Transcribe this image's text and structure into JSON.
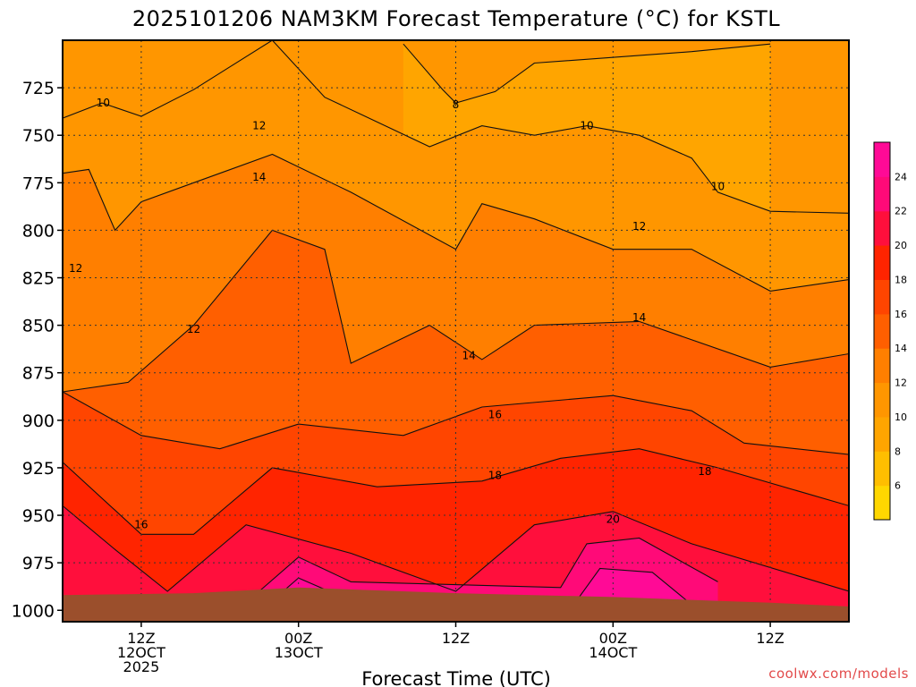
{
  "chart_data": {
    "type": "heatmap",
    "title": "2025101206 NAM3KM Forecast Temperature (°C) for KSTL",
    "xlabel": "Forecast Time (UTC)",
    "ylabel": "",
    "y_ticks": [
      725,
      750,
      775,
      800,
      825,
      850,
      875,
      900,
      925,
      950,
      975,
      1000
    ],
    "y_range_hPa": [
      700,
      1006
    ],
    "x_ticks": [
      {
        "hour": 6,
        "lines": [
          "12Z",
          "12OCT",
          "2025"
        ]
      },
      {
        "hour": 18,
        "lines": [
          "00Z",
          "13OCT"
        ]
      },
      {
        "hour": 30,
        "lines": [
          "12Z"
        ]
      },
      {
        "hour": 42,
        "lines": [
          "00Z",
          "14OCT"
        ]
      },
      {
        "hour": 54,
        "lines": [
          "12Z"
        ]
      }
    ],
    "x_range_hours": [
      0,
      60
    ],
    "grid": true,
    "colorbar": {
      "placement": "right",
      "tick_labels": [
        6,
        8,
        10,
        12,
        14,
        16,
        18,
        20,
        22,
        24
      ],
      "levels": [
        4,
        6,
        8,
        10,
        12,
        14,
        16,
        18,
        20,
        22,
        24,
        26
      ],
      "colors": [
        "#ffd700",
        "#ffbe00",
        "#ffa500",
        "#ff9600",
        "#ff7f00",
        "#ff5f00",
        "#ff4500",
        "#ff2400",
        "#ff0f3c",
        "#ff0a78",
        "#ff0a96"
      ]
    },
    "ground_color": "#9b4f2c",
    "contour_labels": [
      {
        "text": "10",
        "hour": 3.1,
        "p": 733
      },
      {
        "text": "12",
        "hour": 1.0,
        "p": 820
      },
      {
        "text": "12",
        "hour": 15.0,
        "p": 745
      },
      {
        "text": "14",
        "hour": 15.0,
        "p": 772
      },
      {
        "text": "12",
        "hour": 10.0,
        "p": 852
      },
      {
        "text": "16",
        "hour": 6.0,
        "p": 955
      },
      {
        "text": "8",
        "hour": 30.0,
        "p": 734
      },
      {
        "text": "14",
        "hour": 31.0,
        "p": 866
      },
      {
        "text": "16",
        "hour": 33.0,
        "p": 897
      },
      {
        "text": "18",
        "hour": 33.0,
        "p": 929
      },
      {
        "text": "10",
        "hour": 40.0,
        "p": 745
      },
      {
        "text": "10",
        "hour": 50.0,
        "p": 777
      },
      {
        "text": "12",
        "hour": 44.0,
        "p": 798
      },
      {
        "text": "14",
        "hour": 44.0,
        "p": 846
      },
      {
        "text": "20",
        "hour": 42.0,
        "p": 952
      },
      {
        "text": "18",
        "hour": 49.0,
        "p": 927
      }
    ],
    "series": [
      {
        "level": 8,
        "sample": [
          [
            26,
            702
          ],
          [
            29,
            726
          ],
          [
            30,
            733
          ],
          [
            33,
            727
          ],
          [
            36,
            712
          ],
          [
            48,
            706
          ],
          [
            54,
            702
          ]
        ]
      },
      {
        "level": 10,
        "sample": [
          [
            0,
            741
          ],
          [
            3,
            733
          ],
          [
            6,
            740
          ],
          [
            10,
            726
          ],
          [
            16,
            700
          ],
          [
            20,
            730
          ],
          [
            28,
            756
          ],
          [
            32,
            745
          ],
          [
            36,
            750
          ],
          [
            40,
            745
          ],
          [
            44,
            750
          ],
          [
            48,
            762
          ],
          [
            50,
            780
          ],
          [
            54,
            790
          ],
          [
            60,
            791
          ]
        ]
      },
      {
        "level": 12,
        "sample": [
          [
            0,
            770
          ],
          [
            2,
            768
          ],
          [
            4,
            800
          ],
          [
            6,
            785
          ],
          [
            10,
            775
          ],
          [
            16,
            760
          ],
          [
            22,
            780
          ],
          [
            30,
            810
          ],
          [
            32,
            786
          ],
          [
            36,
            794
          ],
          [
            42,
            810
          ],
          [
            48,
            810
          ],
          [
            54,
            832
          ],
          [
            60,
            826
          ]
        ]
      },
      {
        "level": 14,
        "sample": [
          [
            0,
            885
          ],
          [
            5,
            880
          ],
          [
            10,
            850
          ],
          [
            16,
            800
          ],
          [
            20,
            810
          ],
          [
            22,
            870
          ],
          [
            28,
            850
          ],
          [
            32,
            868
          ],
          [
            36,
            850
          ],
          [
            44,
            848
          ],
          [
            54,
            872
          ],
          [
            60,
            865
          ]
        ]
      },
      {
        "level": 16,
        "sample": [
          [
            0,
            885
          ],
          [
            6,
            908
          ],
          [
            12,
            915
          ],
          [
            18,
            902
          ],
          [
            26,
            908
          ],
          [
            32,
            893
          ],
          [
            42,
            887
          ],
          [
            48,
            895
          ],
          [
            52,
            912
          ],
          [
            60,
            918
          ]
        ]
      },
      {
        "level": 18,
        "sample": [
          [
            0,
            922
          ],
          [
            6,
            960
          ],
          [
            10,
            960
          ],
          [
            16,
            925
          ],
          [
            24,
            935
          ],
          [
            32,
            932
          ],
          [
            38,
            920
          ],
          [
            44,
            915
          ],
          [
            50,
            925
          ],
          [
            60,
            945
          ]
        ]
      },
      {
        "level": 20,
        "sample": [
          [
            0,
            945
          ],
          [
            4,
            968
          ],
          [
            8,
            990
          ],
          [
            14,
            955
          ],
          [
            22,
            970
          ],
          [
            30,
            990
          ],
          [
            36,
            955
          ],
          [
            42,
            948
          ],
          [
            48,
            965
          ],
          [
            60,
            990
          ]
        ]
      },
      {
        "level": 22,
        "sample": [
          [
            15,
            990
          ],
          [
            18,
            972
          ],
          [
            22,
            985
          ],
          [
            38,
            988
          ],
          [
            40,
            965
          ],
          [
            44,
            962
          ],
          [
            50,
            985
          ]
        ]
      },
      {
        "level": 24,
        "sample": [
          [
            16,
            995
          ],
          [
            18,
            983
          ],
          [
            22,
            995
          ],
          [
            39,
            997
          ],
          [
            41,
            978
          ],
          [
            45,
            980
          ],
          [
            48,
            997
          ]
        ]
      }
    ]
  },
  "credit": "coolwx.com/models"
}
